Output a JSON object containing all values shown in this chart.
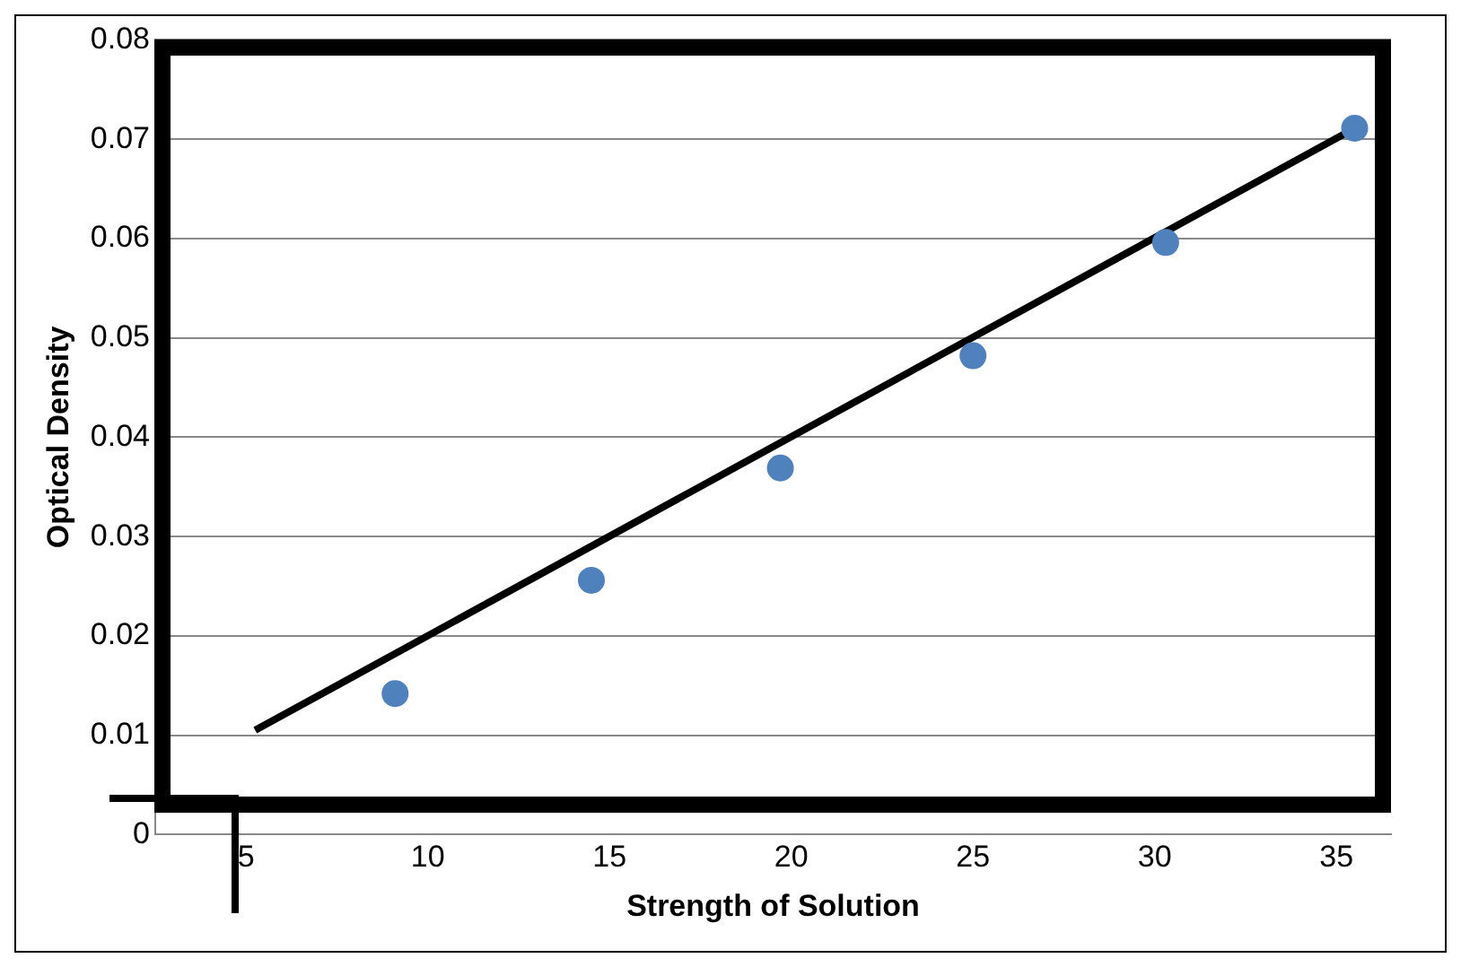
{
  "chart_data": {
    "type": "scatter",
    "xlabel": "Strength of Solution",
    "ylabel": "Optical Density",
    "series": [
      {
        "color": "#4f81bd",
        "marker": "circle",
        "x": [
          9.1,
          14.5,
          19.7,
          25.0,
          30.3,
          35.5
        ],
        "values": [
          0.0142,
          0.0256,
          0.0369,
          0.0482,
          0.0596,
          0.0711
        ]
      },
      {
        "type": "line",
        "color": "#000000",
        "marker": "none",
        "x": [
          5.25,
          35.5
        ],
        "values": [
          0.0105,
          0.0711
        ]
      }
    ],
    "xlim": [
      2.5,
      36.5
    ],
    "xticks": [
      5,
      10,
      15,
      20,
      25,
      30,
      35
    ],
    "ylim": [
      0,
      0.08
    ],
    "yticks": [
      0,
      0.01,
      0.02,
      0.03,
      0.04,
      0.05,
      0.06,
      0.07,
      0.08
    ],
    "grid": "y"
  }
}
